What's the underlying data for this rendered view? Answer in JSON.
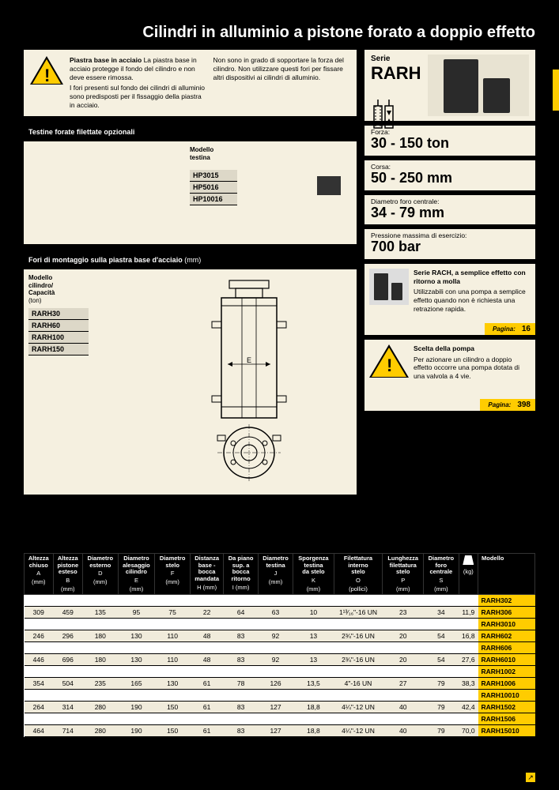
{
  "page_title": "Cilindri in alluminio a pistone forato a doppio effetto",
  "info_box": {
    "heading": "Piastra base in acciaio",
    "col1_a": "La piastra base in acciaio protegge il fondo del cilindro e non deve essere rimossa.",
    "col1_b": "I fori presenti sul fondo dei cilindri di alluminio sono predisposti per il fissaggio della piastra in acciaio.",
    "col2": "Non sono in grado di sopportare la forza del cilindro. Non utilizzare questi fori per fissare altri dispositivi ai cilindri di alluminio."
  },
  "testine": {
    "bar": "Testine forate filettate opzionali",
    "col_label1": "Modello",
    "col_label2": "testina",
    "hp": [
      "HP3015",
      "HP5016",
      "HP10016"
    ]
  },
  "fori": {
    "bar": "Fori di montaggio sulla piastra base d'acciaio",
    "bar_unit": "(mm)",
    "label1": "Modello",
    "label2": "cilindro/",
    "label3": "Capacità",
    "label4": "(ton)",
    "rarh": [
      "RARH30",
      "RARH60",
      "RARH100",
      "RARH150"
    ],
    "dim_e": "E"
  },
  "series": {
    "label": "Serie",
    "name": "RARH"
  },
  "specs": [
    {
      "label": "Forza:",
      "value": "30 - 150 ton"
    },
    {
      "label": "Corsa:",
      "value": "50 - 250 mm"
    },
    {
      "label": "Diametro foro centrale:",
      "value": "34 - 79 mm"
    },
    {
      "label": "Pressione massima di esercizio:",
      "value": "700 bar"
    }
  ],
  "related": [
    {
      "title": "Serie RACH, a semplice effetto con ritorno a molla",
      "body": "Utilizzabili con una pompa a semplice effetto quando non è richiesta una retrazione rapida.",
      "page_label": "Pagina:",
      "page": "16",
      "has_warn": false
    },
    {
      "title": "Scelta della pompa",
      "body": "Per azionare un cilindro a doppio effetto occorre una pompa dotata di una valvola a 4 vie.",
      "page_label": "Pagina:",
      "page": "398",
      "has_warn": true
    }
  ],
  "table": {
    "headers": [
      {
        "l1": "Altezza",
        "l2": "chiuso",
        "s": "A",
        "u": "(mm)"
      },
      {
        "l1": "Altezza",
        "l2": "pistone",
        "l3": "esteso",
        "s": "B",
        "u": "(mm)"
      },
      {
        "l1": "Diametro",
        "l2": "esterno",
        "s": "D",
        "u": "(mm)"
      },
      {
        "l1": "Diametro",
        "l2": "alesaggio",
        "l3": "cilindro",
        "s": "E",
        "u": "(mm)"
      },
      {
        "l1": "Diametro",
        "l2": "stelo",
        "s": "F",
        "u": "(mm)"
      },
      {
        "l1": "Distanza",
        "l2": "base -",
        "l3": "bocca",
        "l4": "mandata",
        "s": "H (mm)"
      },
      {
        "l1": "Da piano",
        "l2": "sup. a",
        "l3": "bocca",
        "l4": "ritorno",
        "s": "I (mm)"
      },
      {
        "l1": "Diametro",
        "l2": "testina",
        "s": "J",
        "u": "(mm)"
      },
      {
        "l1": "Sporgenza",
        "l2": "testina",
        "l3": "da stelo",
        "s": "K",
        "u": "(mm)"
      },
      {
        "l1": "Filettatura",
        "l2": "interno",
        "l3": "stelo",
        "s": "O",
        "u": "(pollici)"
      },
      {
        "l1": "Lunghezza",
        "l2": "filettatura",
        "l3": "stelo",
        "s": "P",
        "u": "(mm)"
      },
      {
        "l1": "Diametro",
        "l2": "foro",
        "l3": "centrale",
        "s": "S",
        "u": "(mm)"
      },
      {
        "l1": "",
        "icon": "weight",
        "u": "(kg)"
      },
      {
        "l1": "Modello"
      }
    ],
    "rows": [
      {
        "c": [
          "",
          "",
          "",
          "",
          "",
          "",
          "",
          "",
          "",
          "",
          "",
          "",
          ""
        ],
        "m": "RARH302",
        "stripe": false
      },
      {
        "c": [
          "309",
          "459",
          "135",
          "95",
          "75",
          "22",
          "64",
          "63",
          "10",
          "1¹³⁄₁₆\"-16 UN",
          "23",
          "34",
          "11,9"
        ],
        "m": "RARH306",
        "stripe": true
      },
      {
        "c": [
          "",
          "",
          "",
          "",
          "",
          "",
          "",
          "",
          "",
          "",
          "",
          "",
          ""
        ],
        "m": "RARH3010",
        "stripe": false
      },
      {
        "c": [
          "246",
          "296",
          "180",
          "130",
          "110",
          "48",
          "83",
          "92",
          "13",
          "2¾\"-16 UN",
          "20",
          "54",
          "16,8"
        ],
        "m": "RARH602",
        "stripe": true
      },
      {
        "c": [
          "",
          "",
          "",
          "",
          "",
          "",
          "",
          "",
          "",
          "",
          "",
          "",
          ""
        ],
        "m": "RARH606",
        "stripe": false
      },
      {
        "c": [
          "446",
          "696",
          "180",
          "130",
          "110",
          "48",
          "83",
          "92",
          "13",
          "2¾\"-16 UN",
          "20",
          "54",
          "27,6"
        ],
        "m": "RARH6010",
        "stripe": true
      },
      {
        "c": [
          "",
          "",
          "",
          "",
          "",
          "",
          "",
          "",
          "",
          "",
          "",
          "",
          ""
        ],
        "m": "RARH1002",
        "stripe": false
      },
      {
        "c": [
          "354",
          "504",
          "235",
          "165",
          "130",
          "61",
          "78",
          "126",
          "13,5",
          "4\"-16 UN",
          "27",
          "79",
          "38,3"
        ],
        "m": "RARH1006",
        "stripe": true
      },
      {
        "c": [
          "",
          "",
          "",
          "",
          "",
          "",
          "",
          "",
          "",
          "",
          "",
          "",
          ""
        ],
        "m": "RARH10010",
        "stripe": false
      },
      {
        "c": [
          "264",
          "314",
          "280",
          "190",
          "150",
          "61",
          "83",
          "127",
          "18,8",
          "4¼\"-12 UN",
          "40",
          "79",
          "42,4"
        ],
        "m": "RARH1502",
        "stripe": true
      },
      {
        "c": [
          "",
          "",
          "",
          "",
          "",
          "",
          "",
          "",
          "",
          "",
          "",
          "",
          ""
        ],
        "m": "RARH1506",
        "stripe": false
      },
      {
        "c": [
          "464",
          "714",
          "280",
          "190",
          "150",
          "61",
          "83",
          "127",
          "18,8",
          "4¼\"-12 UN",
          "40",
          "79",
          "70,0"
        ],
        "m": "RARH15010",
        "stripe": true
      }
    ]
  }
}
